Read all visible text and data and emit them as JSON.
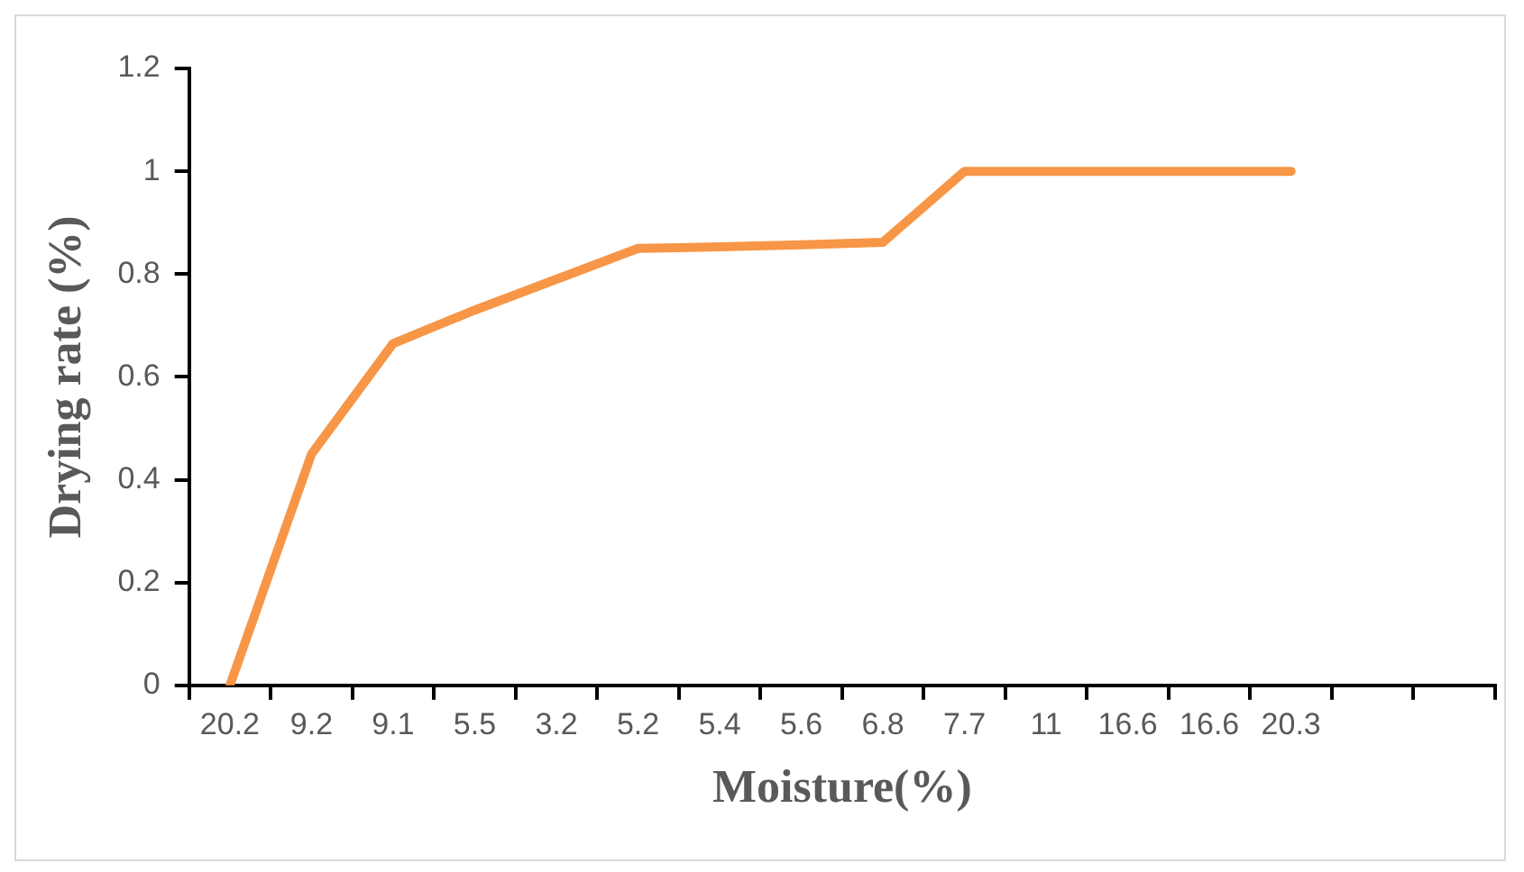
{
  "chart_data": {
    "type": "line",
    "xlabel": "Moisture(%)",
    "ylabel": "Drying rate (%)",
    "categories": [
      "20.2",
      "9.2",
      "9.1",
      "5.5",
      "3.2",
      "5.2",
      "5.4",
      "5.6",
      "6.8",
      "7.7",
      "11",
      "16.6",
      "16.6",
      "20.3",
      null,
      null
    ],
    "series": [
      {
        "color": "#f79646",
        "values": [
          0,
          0.45,
          0.665,
          0.73,
          0.79,
          0.85,
          0.853,
          0.857,
          0.862,
          1,
          1,
          1,
          1,
          1,
          null,
          null
        ]
      }
    ],
    "ylim": [
      0,
      1.2
    ],
    "yticks": [
      0,
      0.2,
      0.4,
      0.6,
      0.8,
      1,
      1.2
    ],
    "grid": false,
    "legend": false,
    "marker": "none",
    "line_style": "solid"
  }
}
